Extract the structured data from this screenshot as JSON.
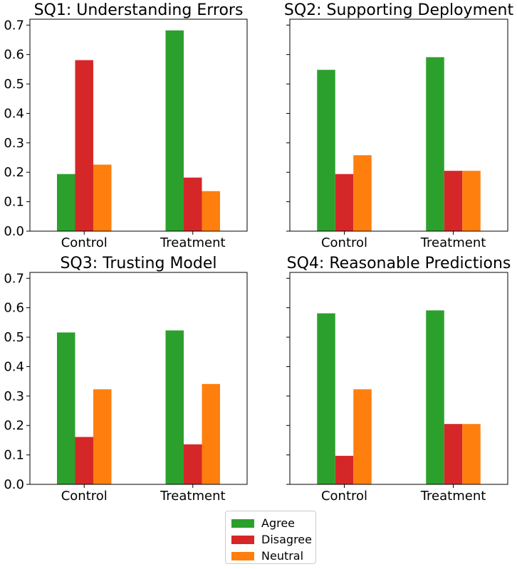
{
  "chart_data": [
    {
      "type": "bar",
      "title": "SQ1: Understanding Errors",
      "categories": [
        "Control",
        "Treatment"
      ],
      "series": [
        {
          "name": "Agree",
          "values": [
            0.194,
            0.682
          ]
        },
        {
          "name": "Disagree",
          "values": [
            0.581,
            0.182
          ]
        },
        {
          "name": "Neutral",
          "values": [
            0.226,
            0.136
          ]
        }
      ],
      "ylim": [
        0,
        0.72
      ],
      "yticks": [
        "0.0",
        "0.1",
        "0.2",
        "0.3",
        "0.4",
        "0.5",
        "0.6",
        "0.7"
      ],
      "xlabel": "",
      "ylabel": ""
    },
    {
      "type": "bar",
      "title": "SQ2: Supporting Deployment",
      "categories": [
        "Control",
        "Treatment"
      ],
      "series": [
        {
          "name": "Agree",
          "values": [
            0.548,
            0.591
          ]
        },
        {
          "name": "Disagree",
          "values": [
            0.194,
            0.205
          ]
        },
        {
          "name": "Neutral",
          "values": [
            0.258,
            0.205
          ]
        }
      ],
      "ylim": [
        0,
        0.72
      ],
      "yticks": [],
      "xlabel": "",
      "ylabel": ""
    },
    {
      "type": "bar",
      "title": "SQ3: Trusting Model",
      "categories": [
        "Control",
        "Treatment"
      ],
      "series": [
        {
          "name": "Agree",
          "values": [
            0.516,
            0.523
          ]
        },
        {
          "name": "Disagree",
          "values": [
            0.161,
            0.136
          ]
        },
        {
          "name": "Neutral",
          "values": [
            0.323,
            0.341
          ]
        }
      ],
      "ylim": [
        0,
        0.72
      ],
      "yticks": [
        "0.0",
        "0.1",
        "0.2",
        "0.3",
        "0.4",
        "0.5",
        "0.6",
        "0.7"
      ],
      "xlabel": "",
      "ylabel": ""
    },
    {
      "type": "bar",
      "title": "SQ4: Reasonable Predictions",
      "categories": [
        "Control",
        "Treatment"
      ],
      "series": [
        {
          "name": "Agree",
          "values": [
            0.581,
            0.591
          ]
        },
        {
          "name": "Disagree",
          "values": [
            0.097,
            0.205
          ]
        },
        {
          "name": "Neutral",
          "values": [
            0.323,
            0.205
          ]
        }
      ],
      "ylim": [
        0,
        0.72
      ],
      "yticks": [],
      "xlabel": "",
      "ylabel": ""
    }
  ],
  "legend": {
    "placement": "bottom-center",
    "items": [
      "Agree",
      "Disagree",
      "Neutral"
    ]
  },
  "colors": {
    "Agree": "#2ca02c",
    "Disagree": "#d62728",
    "Neutral": "#ff7f0e"
  }
}
